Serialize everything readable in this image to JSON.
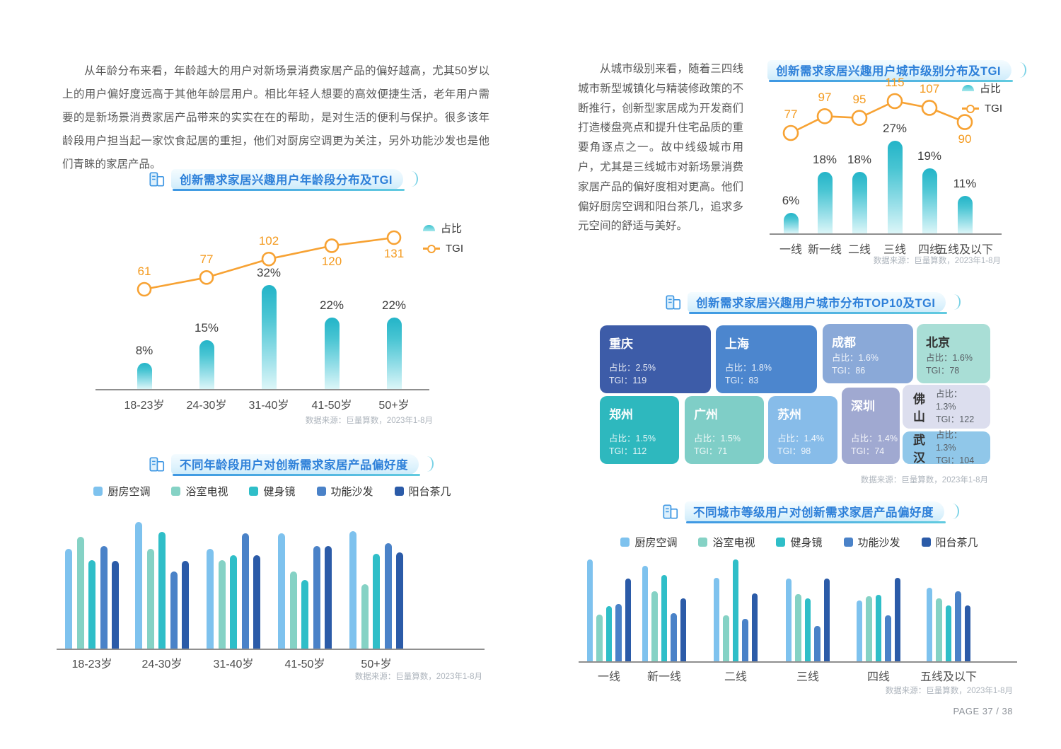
{
  "page": {
    "number_label": "PAGE 37 / 38",
    "source_note": "数据来源：巨量算数，2023年1-8月"
  },
  "labels": {
    "share": "占比",
    "tgi": "TGI"
  },
  "left_column": {
    "paragraph": "从年龄分布来看，年龄越大的用户对新场景消费家居产品的偏好越高，尤其50岁以上的用户偏好度远高于其他年龄层用户。相比年轻人想要的高效便捷生活，老年用户需要的是新场景消费家居产品带来的实实在在的帮助，是对生活的便利与保护。很多该年龄段用户担当起一家饮食起居的重担，他们对厨房空调更为关注，另外功能沙发也是他们青睐的家居产品。"
  },
  "right_column": {
    "paragraph": "从城市级别来看，随着三四线城市新型城镇化与精装修政策的不断推行，创新型家居成为开发商们打造楼盘亮点和提升住宅品质的重要角逐点之一。故中线级城市用户，尤其是三线城市对新场景消费家居产品的偏好度相对更高。他们偏好厨房空调和阳台茶几，追求多元空间的舒适与美好。"
  },
  "colors": {
    "accent_blue": "#2E80D9",
    "orange": "#F7A233",
    "teal_bar_top": "#23B4C8",
    "teal_bar_bottom": "#DCF6F8",
    "axis": "#8F8F8F",
    "series_palette": [
      "#7EC2EE",
      "#85D2C5",
      "#2FBEC8",
      "#4A82C8",
      "#2B5BA8"
    ]
  },
  "chart_data": [
    {
      "id": "age_distribution_tgi",
      "type": "bar",
      "title": "创新需求家居兴趣用户年龄段分布及TGI",
      "categories": [
        "18-23岁",
        "24-30岁",
        "31-40岁",
        "41-50岁",
        "50+岁"
      ],
      "series": [
        {
          "name": "占比",
          "type": "bar",
          "unit": "%",
          "values": [
            8,
            15,
            32,
            22,
            22
          ]
        },
        {
          "name": "TGI",
          "type": "line",
          "values": [
            61,
            77,
            102,
            120,
            131
          ]
        }
      ],
      "legend_position": "right",
      "source": "数据来源：巨量算数，2023年1-8月"
    },
    {
      "id": "age_preference",
      "type": "bar",
      "title": "不同年龄段用户对创新需求家居产品偏好度",
      "categories": [
        "18-23岁",
        "24-30岁",
        "31-40岁",
        "41-50岁",
        "50+岁"
      ],
      "unit": "relative preference index (estimated from bar heights, no data labels shown)",
      "values_estimated": true,
      "series": [
        {
          "name": "厨房空调",
          "values": [
            79,
            100,
            79,
            91,
            93
          ]
        },
        {
          "name": "浴室电视",
          "values": [
            88,
            79,
            70,
            61,
            51
          ]
        },
        {
          "name": "健身镜",
          "values": [
            70,
            92,
            74,
            54,
            75
          ]
        },
        {
          "name": "功能沙发",
          "values": [
            81,
            61,
            91,
            81,
            83
          ]
        },
        {
          "name": "阳台茶几",
          "values": [
            69,
            69,
            74,
            81,
            76
          ]
        }
      ],
      "legend_position": "top",
      "source": "数据来源：巨量算数，2023年1-8月"
    },
    {
      "id": "city_tier_distribution_tgi",
      "type": "bar",
      "title": "创新需求家居兴趣用户城市级别分布及TGI",
      "categories": [
        "一线",
        "新一线",
        "二线",
        "三线",
        "四线",
        "五线及以下"
      ],
      "series": [
        {
          "name": "占比",
          "type": "bar",
          "unit": "%",
          "values": [
            6,
            18,
            18,
            27,
            19,
            11
          ]
        },
        {
          "name": "TGI",
          "type": "line",
          "values": [
            77,
            97,
            95,
            115,
            107,
            90
          ]
        }
      ],
      "legend_position": "right",
      "source": "数据来源：巨量算数，2023年1-8月"
    },
    {
      "id": "city_top10_tgi",
      "type": "treemap",
      "title": "创新需求家居兴趣用户城市分布TOP10及TGI",
      "items": [
        {
          "city": "重庆",
          "share": "2.5%",
          "tgi": 119,
          "color": "#3D5CA8",
          "text": "light"
        },
        {
          "city": "上海",
          "share": "1.8%",
          "tgi": 83,
          "color": "#4C86CE",
          "text": "light"
        },
        {
          "city": "成都",
          "share": "1.6%",
          "tgi": 86,
          "color": "#8AA9D8",
          "text": "light"
        },
        {
          "city": "北京",
          "share": "1.6%",
          "tgi": 78,
          "color": "#A9DED6",
          "text": "dark"
        },
        {
          "city": "郑州",
          "share": "1.5%",
          "tgi": 112,
          "color": "#2EB8BE",
          "text": "light"
        },
        {
          "city": "广州",
          "share": "1.5%",
          "tgi": 71,
          "color": "#7FCEC7",
          "text": "light"
        },
        {
          "city": "苏州",
          "share": "1.4%",
          "tgi": 98,
          "color": "#87BCE9",
          "text": "light"
        },
        {
          "city": "深圳",
          "share": "1.4%",
          "tgi": 74,
          "color": "#A0A9D1",
          "text": "light"
        },
        {
          "city": "佛山",
          "share": "1.3%",
          "tgi": 122,
          "color": "#DCDEEE",
          "text": "dark"
        },
        {
          "city": "武汉",
          "share": "1.3%",
          "tgi": 104,
          "color": "#90C7E9",
          "text": "dark"
        }
      ],
      "source": "数据来源：巨量算数，2023年1-8月"
    },
    {
      "id": "tier_preference",
      "type": "bar",
      "title": "不同城市等级用户对创新需求家居产品偏好度",
      "categories": [
        "一线",
        "新一线",
        "二线",
        "三线",
        "四线",
        "五线及以下"
      ],
      "unit": "relative preference index (estimated from bar heights, no data labels shown)",
      "values_estimated": true,
      "series": [
        {
          "name": "厨房空调",
          "values": [
            100,
            94,
            82,
            81,
            60,
            72
          ]
        },
        {
          "name": "浴室电视",
          "values": [
            46,
            69,
            45,
            66,
            64,
            62
          ]
        },
        {
          "name": "健身镜",
          "values": [
            54,
            85,
            100,
            62,
            65,
            55
          ]
        },
        {
          "name": "功能沙发",
          "values": [
            56,
            47,
            42,
            35,
            45,
            69
          ]
        },
        {
          "name": "阳台茶几",
          "values": [
            81,
            62,
            67,
            81,
            82,
            55
          ]
        }
      ],
      "legend_position": "top",
      "source": "数据来源：巨量算数，2023年1-8月"
    }
  ]
}
